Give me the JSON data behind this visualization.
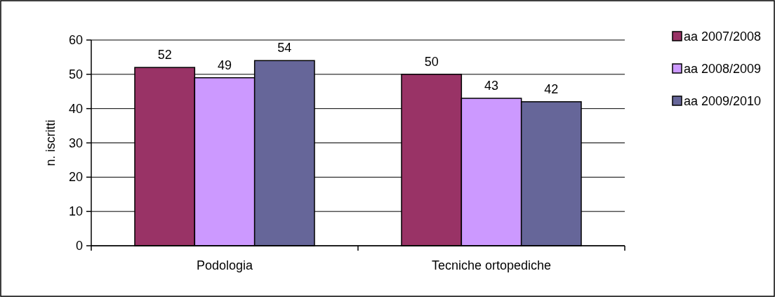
{
  "chart_data": {
    "type": "bar",
    "ylabel": "n. iscritti",
    "categories": [
      "Podologia",
      "Tecniche ortopediche"
    ],
    "series": [
      {
        "name": "aa 2007/2008",
        "color": "#993366",
        "values": [
          52,
          50
        ]
      },
      {
        "name": "aa 2008/2009",
        "color": "#cc99ff",
        "values": [
          49,
          43
        ]
      },
      {
        "name": "aa 2009/2010",
        "color": "#666699",
        "values": [
          54,
          42
        ]
      }
    ],
    "ylim": [
      0,
      60
    ],
    "yticks": [
      0,
      10,
      20,
      30,
      40,
      50,
      60
    ],
    "grid": "y",
    "legend": "top right",
    "data_labels": true
  }
}
